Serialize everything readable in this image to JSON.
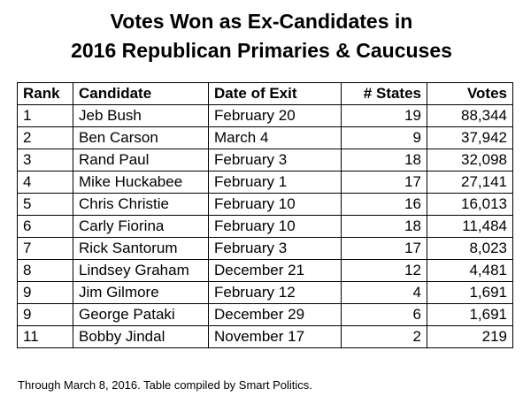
{
  "title_line1": "Votes Won as Ex-Candidates in",
  "title_line2": "2016 Republican Primaries & Caucuses",
  "columns": [
    "Rank",
    "Candidate",
    "Date of Exit",
    "# States",
    "Votes"
  ],
  "rows": [
    {
      "rank": "1",
      "candidate": "Jeb Bush",
      "date": "February 20",
      "states": "19",
      "votes": "88,344"
    },
    {
      "rank": "2",
      "candidate": "Ben Carson",
      "date": "March 4",
      "states": "9",
      "votes": "37,942"
    },
    {
      "rank": "3",
      "candidate": "Rand Paul",
      "date": "February 3",
      "states": "18",
      "votes": "32,098"
    },
    {
      "rank": "4",
      "candidate": "Mike Huckabee",
      "date": "February 1",
      "states": "17",
      "votes": "27,141"
    },
    {
      "rank": "5",
      "candidate": "Chris Christie",
      "date": "February 10",
      "states": "16",
      "votes": "16,013"
    },
    {
      "rank": "6",
      "candidate": "Carly Fiorina",
      "date": "February 10",
      "states": "18",
      "votes": "11,484"
    },
    {
      "rank": "7",
      "candidate": "Rick Santorum",
      "date": "February 3",
      "states": "17",
      "votes": "8,023"
    },
    {
      "rank": "8",
      "candidate": "Lindsey Graham",
      "date": "December 21",
      "states": "12",
      "votes": "4,481"
    },
    {
      "rank": "9",
      "candidate": "Jim Gilmore",
      "date": "February 12",
      "states": "4",
      "votes": "1,691"
    },
    {
      "rank": "9",
      "candidate": "George Pataki",
      "date": "December 29",
      "states": "6",
      "votes": "1,691"
    },
    {
      "rank": "11",
      "candidate": "Bobby Jindal",
      "date": "November 17",
      "states": "2",
      "votes": "219"
    }
  ],
  "footnote": "Through March 8, 2016. Table compiled by Smart Politics."
}
